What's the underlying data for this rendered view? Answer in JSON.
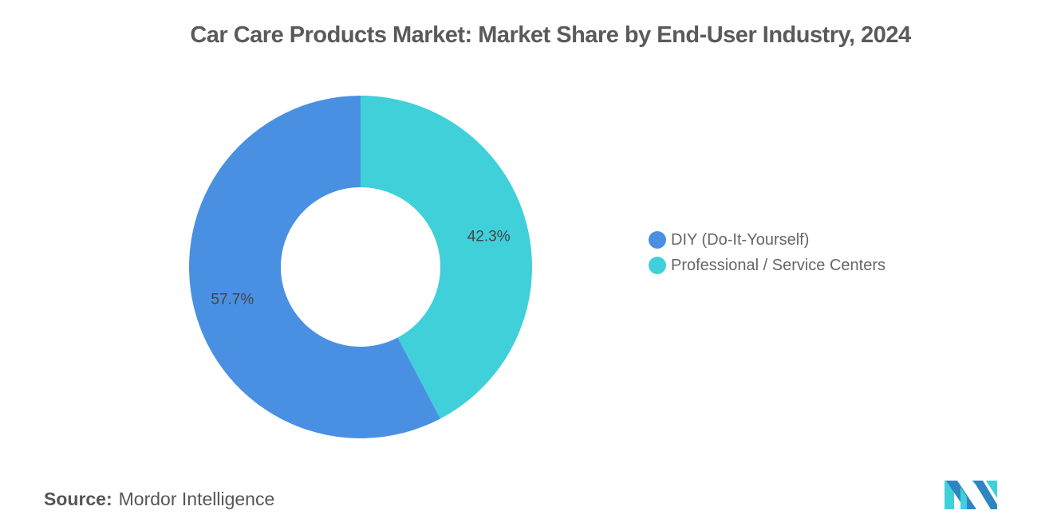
{
  "title": "Car Care Products Market: Market Share by End-User Industry, 2024",
  "chart_data": {
    "type": "pie",
    "variant": "donut",
    "title": "Car Care Products Market: Market Share by End-User Industry, 2024",
    "categories": [
      "Professional / Service Centers",
      "DIY (Do-It-Yourself)"
    ],
    "values": [
      42.3,
      57.7
    ],
    "labels": [
      "42.3%",
      "57.7%"
    ],
    "colors": [
      "#40D0DA",
      "#4A90E2"
    ],
    "start_angle": "top",
    "direction": "clockwise",
    "legend_position": "right"
  },
  "legend": [
    {
      "label": "DIY (Do-It-Yourself)",
      "color": "#4A90E2"
    },
    {
      "label": "Professional / Service Centers",
      "color": "#40D0DA"
    }
  ],
  "source": {
    "label": "Source:",
    "value": "Mordor Intelligence"
  },
  "logo": {
    "text": "Mordor Intelligence logo",
    "colors": [
      "#2E86C1",
      "#40D0DA"
    ]
  }
}
